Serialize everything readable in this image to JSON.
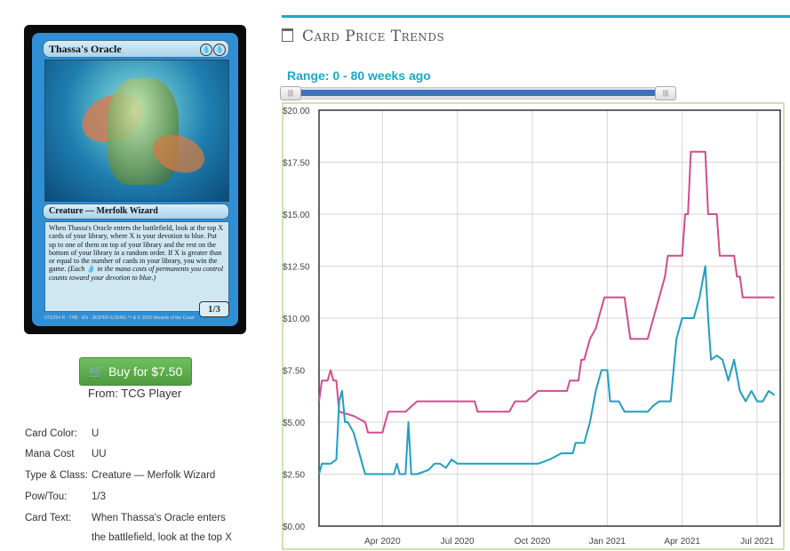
{
  "card": {
    "name": "Thassa's Oracle",
    "mana_symbols": [
      "💧",
      "💧"
    ],
    "type_line": "Creature — Merfolk Wizard",
    "rules_text": "When Thassa's Oracle enters the battlefield, look at the top X cards of your library, where X is your devotion to blue. Put up to one of them on top of your library and the rest on the bottom of your library in a random order. If X is greater than or equal to the number of cards in your library, you win the game.",
    "reminder_text": "(Each 💧 in the mana costs of permanents you control counts toward your devotion to blue.)",
    "pt": "1/3",
    "footer": "073/254 R · THB · EN · JESPER EJSING   ™ & © 2020 Wizards of the Coast"
  },
  "buy": {
    "label": "Buy for $7.50",
    "from": "From: TCG Player"
  },
  "attributes": [
    {
      "key": "Card Color:",
      "value": "U"
    },
    {
      "key": "Mana Cost",
      "value": "UU"
    },
    {
      "key": "Type & Class:",
      "value": "Creature — Merfolk Wizard"
    },
    {
      "key": "Pow/Tou:",
      "value": "1/3"
    },
    {
      "key": "Card Text:",
      "value": "When Thassa's Oracle enters"
    },
    {
      "key": "",
      "value": "the battlefield, look at the top X"
    }
  ],
  "chart_header": {
    "title": "Card Price Trends",
    "range_label": "Range: 0 - 80 weeks ago"
  },
  "chart_data": {
    "type": "line",
    "ylim": [
      0,
      20
    ],
    "y_ticks": [
      "$0.00",
      "$2.50",
      "$5.00",
      "$7.50",
      "$10.00",
      "$12.50",
      "$15.00",
      "$17.50",
      "$20.00"
    ],
    "x_ticks": [
      {
        "label": "Apr 2020",
        "week": 11
      },
      {
        "label": "Jul 2020",
        "week": 24
      },
      {
        "label": "Oct 2020",
        "week": 37
      },
      {
        "label": "Jan 2021",
        "week": 50
      },
      {
        "label": "Apr 2021",
        "week": 63
      },
      {
        "label": "Jul 2021",
        "week": 76
      }
    ],
    "x_range_weeks": [
      0,
      80
    ],
    "grid": true,
    "series": [
      {
        "color": "#d14c8e",
        "points": [
          [
            0,
            6.0
          ],
          [
            0.5,
            7.0
          ],
          [
            1.5,
            7.0
          ],
          [
            2,
            7.5
          ],
          [
            2.5,
            7.0
          ],
          [
            3,
            7.0
          ],
          [
            3.5,
            5.5
          ],
          [
            6,
            5.3
          ],
          [
            8,
            5.0
          ],
          [
            8.5,
            4.5
          ],
          [
            11,
            4.5
          ],
          [
            11.5,
            5.0
          ],
          [
            12,
            5.5
          ],
          [
            15,
            5.5
          ],
          [
            17,
            6.0
          ],
          [
            19,
            6.0
          ],
          [
            22,
            6.0
          ],
          [
            27,
            6.0
          ],
          [
            27.5,
            5.5
          ],
          [
            30,
            5.5
          ],
          [
            33,
            5.5
          ],
          [
            34,
            6.0
          ],
          [
            36,
            6.0
          ],
          [
            38,
            6.5
          ],
          [
            41,
            6.5
          ],
          [
            43,
            6.5
          ],
          [
            43.5,
            7.0
          ],
          [
            45,
            7.0
          ],
          [
            45.5,
            8.0
          ],
          [
            46,
            8.0
          ],
          [
            47,
            9.0
          ],
          [
            48,
            9.5
          ],
          [
            48.5,
            10.0
          ],
          [
            49,
            10.5
          ],
          [
            49.5,
            11.0
          ],
          [
            53,
            11.0
          ],
          [
            53.5,
            10.0
          ],
          [
            54,
            9.0
          ],
          [
            57,
            9.0
          ],
          [
            57.5,
            9.5
          ],
          [
            58,
            10.0
          ],
          [
            59,
            11.0
          ],
          [
            60,
            12.0
          ],
          [
            60.5,
            13.0
          ],
          [
            63,
            13.0
          ],
          [
            63.5,
            15.0
          ],
          [
            64,
            15.0
          ],
          [
            64.5,
            18.0
          ],
          [
            67,
            18.0
          ],
          [
            67.5,
            15.0
          ],
          [
            69,
            15.0
          ],
          [
            69.5,
            13.0
          ],
          [
            72,
            13.0
          ],
          [
            72.5,
            12.0
          ],
          [
            73,
            12.0
          ],
          [
            73.5,
            11.0
          ],
          [
            79,
            11.0
          ]
        ]
      },
      {
        "color": "#1f9fc0",
        "points": [
          [
            0,
            2.5
          ],
          [
            0.5,
            3.0
          ],
          [
            2,
            3.0
          ],
          [
            3,
            3.2
          ],
          [
            3.5,
            6.0
          ],
          [
            4,
            6.5
          ],
          [
            4.5,
            5.0
          ],
          [
            5,
            5.0
          ],
          [
            6,
            4.5
          ],
          [
            7,
            3.5
          ],
          [
            8,
            2.5
          ],
          [
            9,
            2.5
          ],
          [
            11,
            2.5
          ],
          [
            13,
            2.5
          ],
          [
            13.5,
            3.0
          ],
          [
            14,
            2.5
          ],
          [
            15,
            2.5
          ],
          [
            15.5,
            5.0
          ],
          [
            16,
            2.5
          ],
          [
            17,
            2.5
          ],
          [
            19,
            2.7
          ],
          [
            20,
            3.0
          ],
          [
            21,
            3.0
          ],
          [
            22,
            2.8
          ],
          [
            23,
            3.2
          ],
          [
            24,
            3.0
          ],
          [
            27,
            3.0
          ],
          [
            29,
            3.0
          ],
          [
            32,
            3.0
          ],
          [
            35,
            3.0
          ],
          [
            38,
            3.0
          ],
          [
            40,
            3.2
          ],
          [
            42,
            3.5
          ],
          [
            43,
            3.5
          ],
          [
            44,
            3.5
          ],
          [
            44.5,
            4.0
          ],
          [
            46,
            4.0
          ],
          [
            47,
            5.0
          ],
          [
            48,
            6.5
          ],
          [
            49,
            7.5
          ],
          [
            50,
            7.5
          ],
          [
            50.5,
            6.0
          ],
          [
            51,
            6.0
          ],
          [
            52,
            6.0
          ],
          [
            53,
            5.5
          ],
          [
            55,
            5.5
          ],
          [
            56,
            5.5
          ],
          [
            57,
            5.5
          ],
          [
            58,
            5.8
          ],
          [
            59,
            6.0
          ],
          [
            60,
            6.0
          ],
          [
            61,
            6.0
          ],
          [
            62,
            9.0
          ],
          [
            63,
            10.0
          ],
          [
            64,
            10.0
          ],
          [
            65,
            10.0
          ],
          [
            66,
            11.0
          ],
          [
            67,
            12.5
          ],
          [
            67.5,
            10.0
          ],
          [
            68,
            8.0
          ],
          [
            69,
            8.2
          ],
          [
            70,
            8.0
          ],
          [
            71,
            7.0
          ],
          [
            72,
            8.0
          ],
          [
            73,
            6.5
          ],
          [
            74,
            6.0
          ],
          [
            75,
            6.5
          ],
          [
            76,
            6.0
          ],
          [
            77,
            6.0
          ],
          [
            78,
            6.5
          ],
          [
            79,
            6.3
          ]
        ]
      }
    ]
  }
}
